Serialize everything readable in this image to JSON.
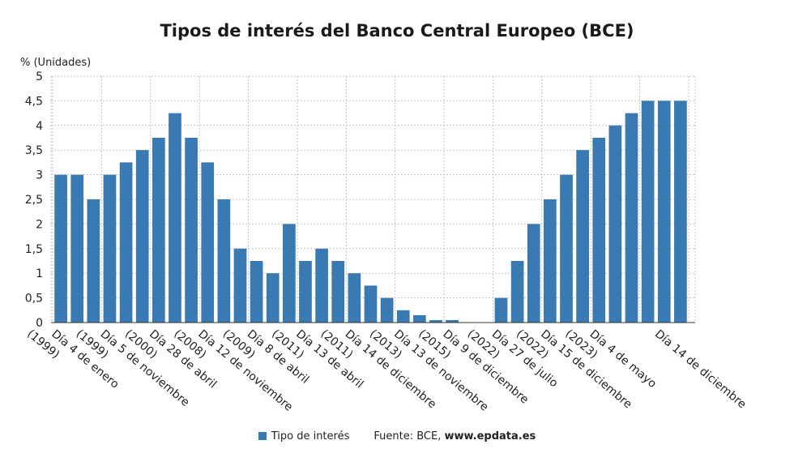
{
  "chart_data": {
    "type": "bar",
    "title": "Tipos de interés del Banco Central Europeo (BCE)",
    "ylabel": "% (Unidades)",
    "ylim": [
      0,
      5
    ],
    "yticks": [
      "0",
      "0,5",
      "1",
      "1,5",
      "2",
      "2,5",
      "3",
      "3,5",
      "4",
      "4,5",
      "5"
    ],
    "grid": true,
    "bar_color": "#3a7ab3",
    "series": [
      {
        "name": "Tipo de interés",
        "values": [
          3,
          3,
          2.5,
          3,
          3.25,
          3.5,
          3.75,
          4.25,
          3.75,
          3.25,
          2.5,
          1.5,
          1.25,
          1,
          2,
          1.25,
          1.5,
          1.25,
          1,
          0.75,
          0.5,
          0.25,
          0.15,
          0.05,
          0.05,
          0,
          0,
          0.5,
          1.25,
          2,
          2.5,
          3,
          3.5,
          3.75,
          4,
          4.25,
          4.5,
          4.5,
          4.5
        ]
      }
    ],
    "x_labels": [
      {
        "index": 0,
        "line1": "Día 4 de enero",
        "line2": "(1999)"
      },
      {
        "index": 3,
        "line1": "Día 5 de noviembre",
        "line2": "(1999)"
      },
      {
        "index": 6,
        "line1": "Día 28 de abril",
        "line2": "(2000)"
      },
      {
        "index": 9,
        "line1": "Día 12 de noviembre",
        "line2": "(2008)"
      },
      {
        "index": 12,
        "line1": "Día 8 de abril",
        "line2": "(2009)"
      },
      {
        "index": 15,
        "line1": "Día 13 de abril",
        "line2": "(2011)"
      },
      {
        "index": 18,
        "line1": "Día 14 de diciembre",
        "line2": "(2011)"
      },
      {
        "index": 21,
        "line1": "Día 13 de noviembre",
        "line2": "(2013)"
      },
      {
        "index": 24,
        "line1": "Día 9 de diciembre",
        "line2": "(2015)"
      },
      {
        "index": 27,
        "line1": "Día 27 de julio",
        "line2": "(2022)"
      },
      {
        "index": 30,
        "line1": "Día 15 de diciembre",
        "line2": "(2022)"
      },
      {
        "index": 33,
        "line1": "Día 4 de mayo",
        "line2": "(2023)"
      },
      {
        "index": 37,
        "line1": "Día 14 de diciembre",
        "line2": ""
      }
    ]
  },
  "legend": {
    "series_label": "Tipo de interés",
    "source_prefix": "Fuente: BCE, ",
    "source_link": "www.epdata.es"
  }
}
